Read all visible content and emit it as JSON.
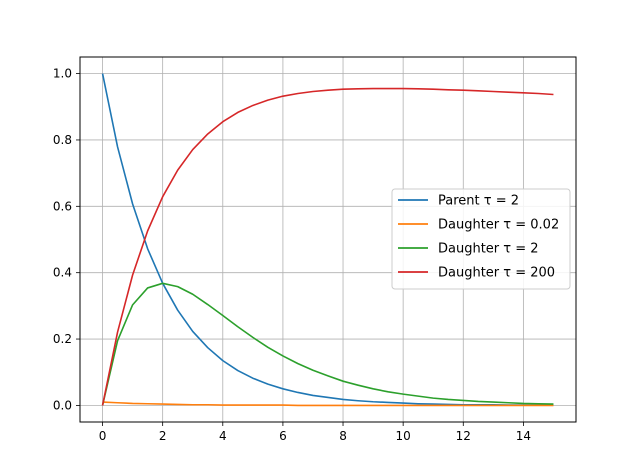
{
  "chart_data": {
    "type": "line",
    "title": "",
    "xlabel": "",
    "ylabel": "",
    "xlim": [
      -0.75,
      15.75
    ],
    "ylim": [
      -0.05,
      1.05
    ],
    "xticks": [
      0,
      2,
      4,
      6,
      8,
      10,
      12,
      14
    ],
    "yticks": [
      0.0,
      0.2,
      0.4,
      0.6,
      0.8,
      1.0
    ],
    "xtick_labels": [
      "0",
      "2",
      "4",
      "6",
      "8",
      "10",
      "12",
      "14"
    ],
    "ytick_labels": [
      "0.0",
      "0.2",
      "0.4",
      "0.6",
      "0.8",
      "1.0"
    ],
    "grid": true,
    "legend_position": "center-right",
    "x": [
      0,
      0.5,
      1,
      1.5,
      2,
      2.5,
      3,
      3.5,
      4,
      4.5,
      5,
      5.5,
      6,
      6.5,
      7,
      7.5,
      8,
      8.5,
      9,
      9.5,
      10,
      10.5,
      11,
      11.5,
      12,
      12.5,
      13,
      13.5,
      14,
      14.5,
      15
    ],
    "series": [
      {
        "name": "Parent τ = 2",
        "color": "#1f77b4",
        "values": [
          1.0,
          0.779,
          0.607,
          0.472,
          0.368,
          0.287,
          0.223,
          0.174,
          0.135,
          0.105,
          0.082,
          0.064,
          0.05,
          0.039,
          0.03,
          0.024,
          0.018,
          0.014,
          0.011,
          0.009,
          0.007,
          0.005,
          0.004,
          0.003,
          0.002,
          0.002,
          0.002,
          0.001,
          0.001,
          0.001,
          0.001
        ]
      },
      {
        "name": "Daughter τ = 0.02",
        "color": "#ff7f0e",
        "values": [
          0.01,
          0.008,
          0.006,
          0.005,
          0.004,
          0.003,
          0.002,
          0.002,
          0.001,
          0.001,
          0.001,
          0.001,
          0.001,
          0.0,
          0.0,
          0.0,
          0.0,
          0.0,
          0.0,
          0.0,
          0.0,
          0.0,
          0.0,
          0.0,
          0.0,
          0.0,
          0.0,
          0.0,
          0.0,
          0.0,
          0.0
        ]
      },
      {
        "name": "Daughter τ = 2",
        "color": "#2ca02c",
        "values": [
          0.0,
          0.195,
          0.303,
          0.354,
          0.368,
          0.358,
          0.335,
          0.304,
          0.271,
          0.237,
          0.205,
          0.175,
          0.149,
          0.126,
          0.106,
          0.089,
          0.073,
          0.061,
          0.05,
          0.041,
          0.034,
          0.028,
          0.022,
          0.018,
          0.015,
          0.012,
          0.01,
          0.008,
          0.006,
          0.005,
          0.004
        ]
      },
      {
        "name": "Daughter τ = 200",
        "color": "#d62728",
        "values": [
          0.0,
          0.221,
          0.393,
          0.526,
          0.629,
          0.709,
          0.771,
          0.818,
          0.855,
          0.883,
          0.904,
          0.92,
          0.932,
          0.94,
          0.946,
          0.95,
          0.953,
          0.954,
          0.955,
          0.955,
          0.955,
          0.954,
          0.953,
          0.951,
          0.95,
          0.948,
          0.946,
          0.944,
          0.942,
          0.94,
          0.937
        ]
      }
    ]
  }
}
